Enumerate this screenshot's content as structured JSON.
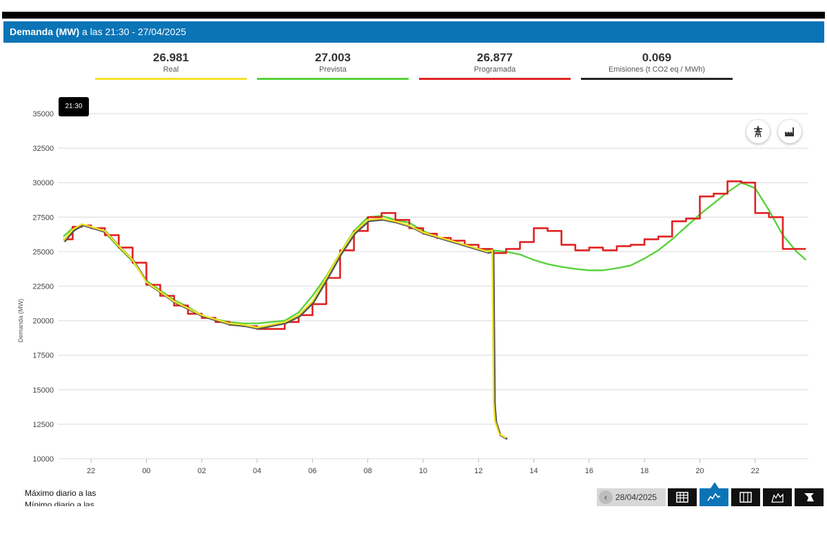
{
  "header": {
    "title_bold": "Demanda (MW)",
    "title_rest": " a las 21:30 - 27/04/2025"
  },
  "kpis": [
    {
      "value": "26.981",
      "label": "Real",
      "color": "#f2e229"
    },
    {
      "value": "27.003",
      "label": "Prevista",
      "color": "#58d23a"
    },
    {
      "value": "26.877",
      "label": "Programada",
      "color": "#e02222"
    },
    {
      "value": "0.069",
      "label": "Emisiones (t CO2 eq / MWh)",
      "color": "#222222"
    }
  ],
  "tooltip": {
    "time": "21:30"
  },
  "icons": {
    "tower": "transmission-tower-icon",
    "factory": "factory-icon"
  },
  "footer": {
    "max_label": "Máximo diario a las",
    "min_label": "Mínimo diario a las"
  },
  "toolbar": {
    "date": "28/04/2025",
    "buttons": [
      "table-icon",
      "chart-icon",
      "grid-icon",
      "map-icon",
      "expand-icon"
    ]
  },
  "chart_data": {
    "type": "line",
    "title": "",
    "xlabel": "",
    "ylabel": "Demanda (MW)",
    "ylim": [
      10000,
      35000
    ],
    "yticks": [
      "35000",
      "32500",
      "30000",
      "27500",
      "25000",
      "22500",
      "20000",
      "17500",
      "15000",
      "12500",
      "10000"
    ],
    "xlim": [
      "21:00",
      "23:50 (+1d)"
    ],
    "xticks": [
      "22",
      "00",
      "02",
      "04",
      "06",
      "08",
      "10",
      "12",
      "14",
      "16",
      "18",
      "20",
      "22"
    ],
    "grid": true,
    "series": [
      {
        "name": "Real",
        "color": "#f2e229",
        "points": [
          [
            "21:00",
            25800
          ],
          [
            "21:20",
            26600
          ],
          [
            "21:40",
            27000
          ],
          [
            "22:00",
            26800
          ],
          [
            "22:30",
            26500
          ],
          [
            "23:00",
            25400
          ],
          [
            "23:30",
            24400
          ],
          [
            "00:00",
            22800
          ],
          [
            "00:30",
            22100
          ],
          [
            "01:00",
            21400
          ],
          [
            "01:30",
            20900
          ],
          [
            "02:00",
            20400
          ],
          [
            "02:30",
            20100
          ],
          [
            "03:00",
            19800
          ],
          [
            "03:30",
            19700
          ],
          [
            "04:00",
            19500
          ],
          [
            "04:30",
            19700
          ],
          [
            "05:00",
            19900
          ],
          [
            "05:30",
            20400
          ],
          [
            "06:00",
            21400
          ],
          [
            "06:30",
            23100
          ],
          [
            "07:00",
            24900
          ],
          [
            "07:30",
            26400
          ],
          [
            "08:00",
            27300
          ],
          [
            "08:30",
            27400
          ],
          [
            "09:00",
            27200
          ],
          [
            "09:30",
            26900
          ],
          [
            "10:00",
            26400
          ],
          [
            "10:30",
            26100
          ],
          [
            "11:00",
            25800
          ],
          [
            "11:30",
            25500
          ],
          [
            "12:00",
            25200
          ],
          [
            "12:20",
            25000
          ],
          [
            "12:30",
            25100
          ],
          [
            "12:33",
            14000
          ],
          [
            "12:36",
            12700
          ],
          [
            "12:45",
            11800
          ],
          [
            "13:00",
            11500
          ]
        ]
      },
      {
        "name": "Prevista",
        "color": "#58d23a",
        "points": [
          [
            "21:00",
            26100
          ],
          [
            "21:20",
            26700
          ],
          [
            "21:40",
            26900
          ],
          [
            "22:00",
            26800
          ],
          [
            "22:30",
            26400
          ],
          [
            "23:00",
            25300
          ],
          [
            "23:30",
            24300
          ],
          [
            "00:00",
            22900
          ],
          [
            "00:30",
            22200
          ],
          [
            "01:00",
            21500
          ],
          [
            "01:30",
            21000
          ],
          [
            "02:00",
            20400
          ],
          [
            "02:30",
            20100
          ],
          [
            "03:00",
            19900
          ],
          [
            "03:30",
            19800
          ],
          [
            "04:00",
            19800
          ],
          [
            "04:30",
            19900
          ],
          [
            "05:00",
            20000
          ],
          [
            "05:30",
            20600
          ],
          [
            "06:00",
            21800
          ],
          [
            "06:30",
            23200
          ],
          [
            "07:00",
            24900
          ],
          [
            "07:30",
            26500
          ],
          [
            "08:00",
            27500
          ],
          [
            "08:30",
            27600
          ],
          [
            "09:00",
            27300
          ],
          [
            "09:30",
            27100
          ],
          [
            "10:00",
            26500
          ],
          [
            "10:30",
            26100
          ],
          [
            "11:00",
            25800
          ],
          [
            "11:30",
            25500
          ],
          [
            "12:00",
            25200
          ],
          [
            "12:30",
            25100
          ],
          [
            "13:00",
            25000
          ],
          [
            "13:30",
            24800
          ],
          [
            "14:00",
            24400
          ],
          [
            "14:30",
            24100
          ],
          [
            "15:00",
            23900
          ],
          [
            "15:30",
            23750
          ],
          [
            "16:00",
            23650
          ],
          [
            "16:30",
            23650
          ],
          [
            "17:00",
            23800
          ],
          [
            "17:30",
            24000
          ],
          [
            "18:00",
            24500
          ],
          [
            "18:30",
            25100
          ],
          [
            "19:00",
            25900
          ],
          [
            "19:30",
            26800
          ],
          [
            "20:00",
            27700
          ],
          [
            "20:30",
            28500
          ],
          [
            "21:00",
            29300
          ],
          [
            "21:30",
            30000
          ],
          [
            "22:00",
            29600
          ],
          [
            "22:30",
            28000
          ],
          [
            "23:00",
            26200
          ],
          [
            "23:30",
            25000
          ],
          [
            "23:50",
            24400
          ]
        ]
      },
      {
        "name": "Programada",
        "color": "#e02222",
        "step": true,
        "points": [
          [
            "21:00",
            25900
          ],
          [
            "21:20",
            26800
          ],
          [
            "21:40",
            26900
          ],
          [
            "22:00",
            26700
          ],
          [
            "22:30",
            26200
          ],
          [
            "23:00",
            25300
          ],
          [
            "23:30",
            24200
          ],
          [
            "00:00",
            22600
          ],
          [
            "00:30",
            21800
          ],
          [
            "01:00",
            21100
          ],
          [
            "01:30",
            20500
          ],
          [
            "02:00",
            20200
          ],
          [
            "02:30",
            19900
          ],
          [
            "03:00",
            19700
          ],
          [
            "03:30",
            19600
          ],
          [
            "04:00",
            19400
          ],
          [
            "04:30",
            19400
          ],
          [
            "05:00",
            19900
          ],
          [
            "05:30",
            20400
          ],
          [
            "06:00",
            21200
          ],
          [
            "06:30",
            23100
          ],
          [
            "07:00",
            25100
          ],
          [
            "07:30",
            26500
          ],
          [
            "08:00",
            27500
          ],
          [
            "08:30",
            27800
          ],
          [
            "09:00",
            27300
          ],
          [
            "09:30",
            26700
          ],
          [
            "10:00",
            26300
          ],
          [
            "10:30",
            26000
          ],
          [
            "11:00",
            25800
          ],
          [
            "11:30",
            25500
          ],
          [
            "12:00",
            25200
          ],
          [
            "12:30",
            24900
          ],
          [
            "13:00",
            25200
          ],
          [
            "13:30",
            25700
          ],
          [
            "14:00",
            26700
          ],
          [
            "14:30",
            26500
          ],
          [
            "15:00",
            25500
          ],
          [
            "15:30",
            25100
          ],
          [
            "16:00",
            25300
          ],
          [
            "16:30",
            25100
          ],
          [
            "17:00",
            25400
          ],
          [
            "17:30",
            25500
          ],
          [
            "18:00",
            25900
          ],
          [
            "18:30",
            26100
          ],
          [
            "19:00",
            27200
          ],
          [
            "19:30",
            27400
          ],
          [
            "20:00",
            29000
          ],
          [
            "20:30",
            29200
          ],
          [
            "21:00",
            30100
          ],
          [
            "21:30",
            30000
          ],
          [
            "22:00",
            27800
          ],
          [
            "22:30",
            27500
          ],
          [
            "23:00",
            25200
          ],
          [
            "23:30",
            25200
          ],
          [
            "23:50",
            25200
          ]
        ]
      }
    ]
  }
}
